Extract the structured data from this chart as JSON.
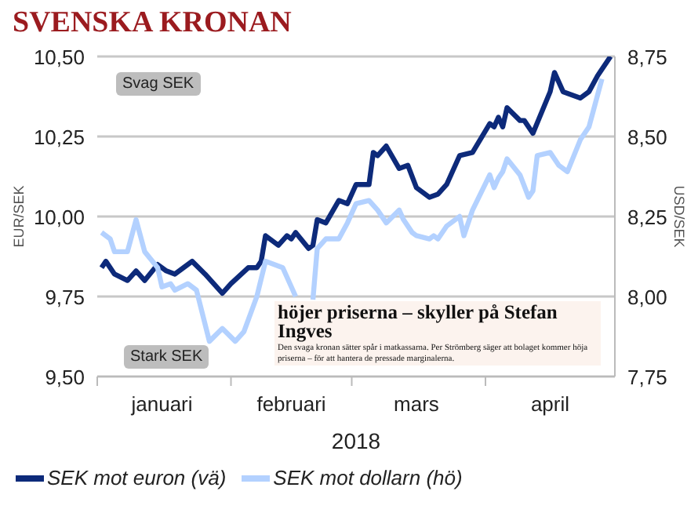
{
  "chart_data": {
    "type": "line",
    "title": "SVENSKA KRONAN",
    "xlabel": "2018",
    "ylabel": "EUR/SEK",
    "y2label": "USD/SEK",
    "annotations": [
      "Svag SEK",
      "Stark SEK",
      "höjer priserna – skyller på Stefan Ingves",
      "Den svaga kronan sätter spår i matkassarna. Per Strömberg säger att bolaget kommer höja priserna – för att hantera de pressade marginalerna."
    ],
    "xlim": [
      "2018-01-01",
      "2018-05-01"
    ],
    "xticks": [
      {
        "value": "2018-01-01",
        "label": null
      },
      {
        "value": "2018-01-16",
        "label": "januari"
      },
      {
        "value": "2018-02-01",
        "label": null
      },
      {
        "value": "2018-02-15",
        "label": "februari"
      },
      {
        "value": "2018-03-01",
        "label": null
      },
      {
        "value": "2018-03-16",
        "label": "mars"
      },
      {
        "value": "2018-04-01",
        "label": null
      },
      {
        "value": "2018-04-16",
        "label": "april"
      }
    ],
    "ylim": [
      9.5,
      10.5
    ],
    "yticks": [
      {
        "value": 9.5,
        "label": "9,50"
      },
      {
        "value": 9.75,
        "label": "9,75"
      },
      {
        "value": 10,
        "label": "10,00"
      },
      {
        "value": 10.25,
        "label": "10,25"
      },
      {
        "value": 10.5,
        "label": "10,50"
      }
    ],
    "y2lim": [
      7.75,
      8.75
    ],
    "y2ticks": [
      {
        "value": 7.75,
        "label": "7,75"
      },
      {
        "value": 8,
        "label": "8,00"
      },
      {
        "value": 8.25,
        "label": "8,25"
      },
      {
        "value": 8.5,
        "label": "8,50"
      },
      {
        "value": 8.75,
        "label": "8,75"
      }
    ],
    "grid": "y",
    "legend": "bottom left",
    "marker": "none",
    "line_style": "solid",
    "series": [
      {
        "name": "SEK mot euron (vä)",
        "color": "#0d2a7a",
        "x": [
          "2018-01-02",
          "2018-01-03",
          "2018-01-05",
          "2018-01-08",
          "2018-01-10",
          "2018-01-12",
          "2018-01-15",
          "2018-01-17",
          "2018-01-19",
          "2018-01-23",
          "2018-01-26",
          "2018-01-30",
          "2018-02-01",
          "2018-02-05",
          "2018-02-07",
          "2018-02-08",
          "2018-02-09",
          "2018-02-12",
          "2018-02-14",
          "2018-02-15",
          "2018-02-16",
          "2018-02-19",
          "2018-02-20",
          "2018-02-21",
          "2018-02-23",
          "2018-02-26",
          "2018-02-28",
          "2018-03-02",
          "2018-03-05",
          "2018-03-06",
          "2018-03-07",
          "2018-03-09",
          "2018-03-12",
          "2018-03-14",
          "2018-03-16",
          "2018-03-19",
          "2018-03-21",
          "2018-03-23",
          "2018-03-26",
          "2018-03-29",
          "2018-04-02",
          "2018-04-03",
          "2018-04-04",
          "2018-04-05",
          "2018-04-06",
          "2018-04-09",
          "2018-04-10",
          "2018-04-12",
          "2018-04-16",
          "2018-04-17",
          "2018-04-19",
          "2018-04-23",
          "2018-04-25",
          "2018-04-27",
          "2018-04-30"
        ],
        "values": [
          9.84,
          9.86,
          9.82,
          9.8,
          9.83,
          9.8,
          9.85,
          9.83,
          9.82,
          9.86,
          9.82,
          9.76,
          9.79,
          9.84,
          9.84,
          9.86,
          9.94,
          9.91,
          9.94,
          9.93,
          9.95,
          9.9,
          9.91,
          9.99,
          9.98,
          10.05,
          10.04,
          10.1,
          10.1,
          10.2,
          10.19,
          10.22,
          10.15,
          10.16,
          10.09,
          10.06,
          10.07,
          10.1,
          10.19,
          10.2,
          10.29,
          10.28,
          10.31,
          10.28,
          10.34,
          10.3,
          10.3,
          10.26,
          10.39,
          10.45,
          10.39,
          10.37,
          10.39,
          10.44,
          10.5
        ]
      },
      {
        "name": "SEK mot dollarn (hö)",
        "color": "#b3d1ff",
        "axis": "y2",
        "x": [
          "2018-01-02",
          "2018-01-04",
          "2018-01-05",
          "2018-01-08",
          "2018-01-10",
          "2018-01-12",
          "2018-01-15",
          "2018-01-16",
          "2018-01-18",
          "2018-01-19",
          "2018-01-22",
          "2018-01-24",
          "2018-01-27",
          "2018-01-30",
          "2018-02-02",
          "2018-02-04",
          "2018-02-07",
          "2018-02-09",
          "2018-02-13",
          "2018-02-16",
          "2018-02-18",
          "2018-02-20",
          "2018-02-21",
          "2018-02-23",
          "2018-02-26",
          "2018-02-28",
          "2018-03-02",
          "2018-03-05",
          "2018-03-07",
          "2018-03-09",
          "2018-03-12",
          "2018-03-13",
          "2018-03-15",
          "2018-03-16",
          "2018-03-19",
          "2018-03-20",
          "2018-03-21",
          "2018-03-23",
          "2018-03-26",
          "2018-03-27",
          "2018-03-29",
          "2018-04-02",
          "2018-04-03",
          "2018-04-04",
          "2018-04-05",
          "2018-04-06",
          "2018-04-09",
          "2018-04-11",
          "2018-04-12",
          "2018-04-13",
          "2018-04-16",
          "2018-04-18",
          "2018-04-20",
          "2018-04-23",
          "2018-04-25",
          "2018-04-26",
          "2018-04-28"
        ],
        "values": [
          8.2,
          8.18,
          8.14,
          8.14,
          8.24,
          8.14,
          8.09,
          8.03,
          8.04,
          8.02,
          8.04,
          8.02,
          7.86,
          7.9,
          7.86,
          7.89,
          8.0,
          8.11,
          8.09,
          8.0,
          null,
          7.99,
          8.15,
          8.18,
          8.18,
          8.23,
          8.29,
          8.3,
          8.27,
          8.23,
          8.27,
          8.24,
          8.2,
          8.19,
          8.18,
          8.19,
          8.18,
          8.22,
          8.25,
          8.19,
          8.27,
          8.38,
          8.34,
          8.37,
          8.39,
          8.43,
          8.38,
          8.31,
          8.33,
          8.44,
          8.45,
          8.41,
          8.39,
          8.49,
          8.53,
          8.58,
          8.68
        ]
      }
    ]
  }
}
